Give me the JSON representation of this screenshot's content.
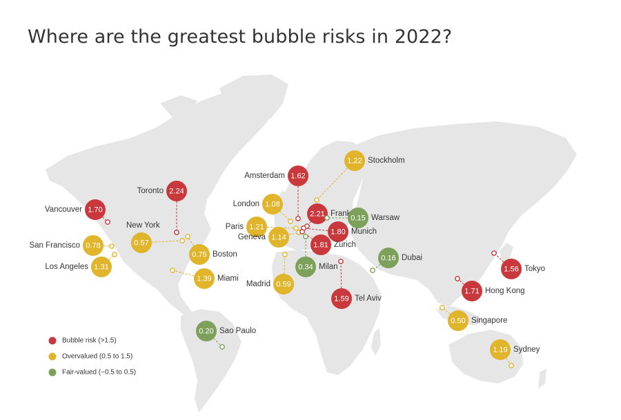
{
  "title": "Where are the greatest bubble risks in 2022?",
  "colors": {
    "bubble_risk": "#c8383c",
    "overvalued": "#e0b52c",
    "fair_valued": "#7da05a",
    "land": "#e6e6e6"
  },
  "legend": [
    {
      "category": "bubble_risk",
      "label": "Bubble risk (>1.5)"
    },
    {
      "category": "overvalued",
      "label": "Overvalued (0.5 to 1.5)"
    },
    {
      "category": "fair_valued",
      "label": "Fair-valued (−0.5 to 0.5)"
    }
  ],
  "cities": [
    {
      "name": "Vancouver",
      "value": "1.70",
      "category": "bubble_risk"
    },
    {
      "name": "Toronto",
      "value": "2.24",
      "category": "bubble_risk"
    },
    {
      "name": "New York",
      "value": "0.57",
      "category": "overvalued"
    },
    {
      "name": "Boston",
      "value": "0.75",
      "category": "overvalued"
    },
    {
      "name": "San Francisco",
      "value": "0.78",
      "category": "overvalued"
    },
    {
      "name": "Los Angeles",
      "value": "1.31",
      "category": "overvalued"
    },
    {
      "name": "Miami",
      "value": "1.39",
      "category": "overvalued"
    },
    {
      "name": "Sao Paulo",
      "value": "0.20",
      "category": "fair_valued"
    },
    {
      "name": "London",
      "value": "1.08",
      "category": "overvalued"
    },
    {
      "name": "Paris",
      "value": "1.21",
      "category": "overvalued"
    },
    {
      "name": "Geneva",
      "value": "1.14",
      "category": "overvalued"
    },
    {
      "name": "Madrid",
      "value": "0.59",
      "category": "overvalued"
    },
    {
      "name": "Amsterdam",
      "value": "1.62",
      "category": "bubble_risk"
    },
    {
      "name": "Frankfurt",
      "value": "2.21",
      "category": "bubble_risk"
    },
    {
      "name": "Munich",
      "value": "1.80",
      "category": "bubble_risk"
    },
    {
      "name": "Zurich",
      "value": "1.81",
      "category": "bubble_risk"
    },
    {
      "name": "Milan",
      "value": "0.34",
      "category": "fair_valued"
    },
    {
      "name": "Stockholm",
      "value": "1.22",
      "category": "overvalued"
    },
    {
      "name": "Warsaw",
      "value": "0.15",
      "category": "fair_valued"
    },
    {
      "name": "Tel Aviv",
      "value": "1.59",
      "category": "bubble_risk"
    },
    {
      "name": "Dubai",
      "value": "0.16",
      "category": "fair_valued"
    },
    {
      "name": "Tokyo",
      "value": "1.56",
      "category": "bubble_risk"
    },
    {
      "name": "Hong Kong",
      "value": "1.71",
      "category": "bubble_risk"
    },
    {
      "name": "Singapore",
      "value": "0.50",
      "category": "overvalued"
    },
    {
      "name": "Sydney",
      "value": "1.19",
      "category": "overvalued"
    }
  ]
}
